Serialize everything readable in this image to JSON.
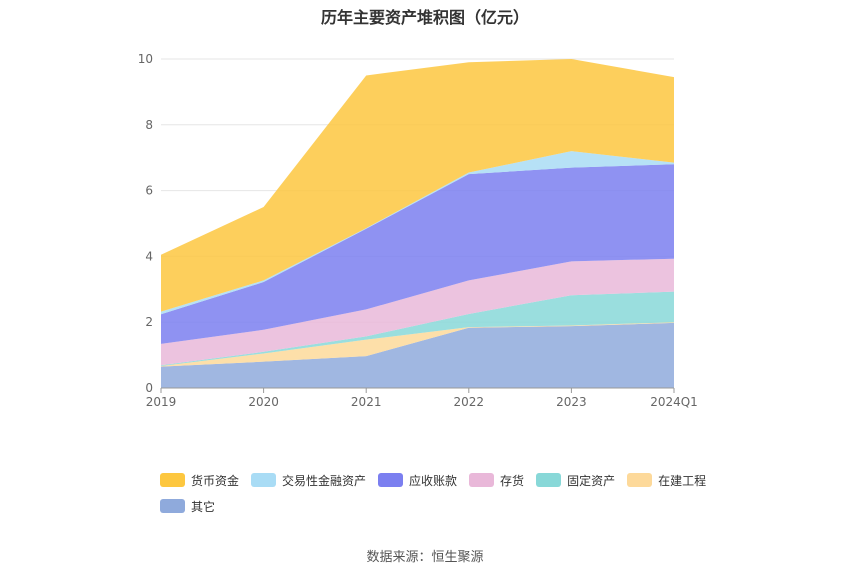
{
  "title": "历年主要资产堆积图（亿元）",
  "source": "数据来源：恒生聚源",
  "chart_data": {
    "type": "area",
    "stacked": true,
    "title": "历年主要资产堆积图（亿元）",
    "categories": [
      "2019",
      "2020",
      "2021",
      "2022",
      "2023",
      "2024Q1"
    ],
    "ylim": [
      0,
      10
    ],
    "yticks": [
      0,
      2,
      4,
      6,
      8,
      10
    ],
    "grid": true,
    "legend_position": "bottom",
    "series": [
      {
        "name": "其它",
        "color": "#8faadc",
        "values": [
          0.65,
          0.8,
          0.97,
          1.83,
          1.88,
          1.98
        ]
      },
      {
        "name": "在建工程",
        "color": "#fdd99a",
        "values": [
          0.02,
          0.25,
          0.5,
          0.02,
          0.02,
          0.02
        ]
      },
      {
        "name": "固定资产",
        "color": "#88d8d8",
        "values": [
          0.02,
          0.05,
          0.1,
          0.4,
          0.92,
          0.93
        ]
      },
      {
        "name": "存货",
        "color": "#e9b8d9",
        "values": [
          0.65,
          0.67,
          0.82,
          1.02,
          1.03,
          1.0
        ]
      },
      {
        "name": "应收账款",
        "color": "#7b7ff0",
        "values": [
          0.9,
          1.45,
          2.45,
          3.23,
          2.85,
          2.87
        ]
      },
      {
        "name": "交易性金融资产",
        "color": "#a9dcf5",
        "values": [
          0.08,
          0.05,
          0.02,
          0.05,
          0.5,
          0.05
        ]
      },
      {
        "name": "货币资金",
        "color": "#fdc73f",
        "values": [
          1.73,
          2.23,
          4.64,
          3.35,
          2.8,
          2.6
        ]
      }
    ]
  },
  "legend": [
    {
      "label": "货币资金",
      "color": "#fdc73f"
    },
    {
      "label": "交易性金融资产",
      "color": "#a9dcf5"
    },
    {
      "label": "应收账款",
      "color": "#7b7ff0"
    },
    {
      "label": "存货",
      "color": "#e9b8d9"
    },
    {
      "label": "固定资产",
      "color": "#88d8d8"
    },
    {
      "label": "在建工程",
      "color": "#fdd99a"
    },
    {
      "label": "其它",
      "color": "#8faadc"
    }
  ]
}
